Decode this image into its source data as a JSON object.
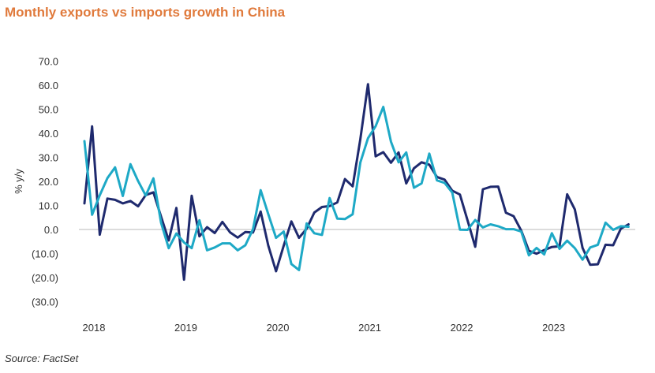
{
  "chart_data": {
    "type": "line",
    "title": "Monthly exports vs imports growth in China",
    "ylabel": "% y/y",
    "xlabel": "",
    "source": "Source: FactSet",
    "ylim": [
      -30,
      70
    ],
    "y_ticks": [
      70,
      60,
      50,
      40,
      30,
      20,
      10,
      0,
      -10,
      -20,
      -30
    ],
    "y_tick_labels": [
      "70.0",
      "60.0",
      "50.0",
      "40.0",
      "30.0",
      "20.0",
      "10.0",
      "0.0",
      "(10.0)",
      "(20.0)",
      "(30.0)"
    ],
    "x_tick_labels": [
      "2018",
      "2019",
      "2020",
      "2021",
      "2022",
      "2023"
    ],
    "x_start": "2018-01",
    "grid": false,
    "legend": "none",
    "series": [
      {
        "color": "#1f2a6e",
        "values": [
          11,
          43,
          -2,
          13,
          12.5,
          11,
          12,
          9.8,
          14.5,
          15.6,
          5.5,
          -4.4,
          9.1,
          -20.7,
          14.2,
          -2.7,
          1.1,
          -1.3,
          3.3,
          -1.0,
          -3.2,
          -0.9,
          -1.1,
          7.6,
          -6.6,
          -17.2,
          -6.6,
          3.5,
          -3.3,
          0.5,
          7.2,
          9.5,
          9.9,
          11.4,
          21.1,
          18.1,
          37.7,
          60.6,
          30.6,
          32.3,
          27.9,
          32.2,
          19.3,
          25.6,
          28.1,
          27.1,
          22,
          20.9,
          16.3,
          14.7,
          3.9,
          -7,
          16.9,
          17.9,
          18,
          7.1,
          5.7,
          -0.3,
          -8.7,
          -9.9,
          -8.4,
          -7.1,
          -6.8,
          14.8,
          8.5,
          -7.5,
          -14.5,
          -14.3,
          -6.2,
          -6.4,
          0.5,
          2.3
        ]
      },
      {
        "color": "#1ea9c6",
        "values": [
          36.9,
          6.3,
          14.4,
          21.5,
          26,
          14.1,
          27.3,
          20.3,
          14.3,
          21.4,
          3,
          -7.6,
          -1.5,
          -5.2,
          -7.6,
          4,
          -8.5,
          -7.3,
          -5.6,
          -5.6,
          -8.5,
          -6.4,
          0.3,
          16.5,
          6.5,
          -3.3,
          -0.7,
          -14.2,
          -16.7,
          2.7,
          -1.4,
          -2.1,
          13.2,
          4.7,
          4.5,
          6.5,
          28,
          38.1,
          43.1,
          51.1,
          36.7,
          28.1,
          32.2,
          17.5,
          19.3,
          31.7,
          20.6,
          19.5,
          15.5,
          0.1,
          0,
          4.1,
          1,
          2.3,
          1.5,
          0.3,
          0.3,
          -0.7,
          -10.6,
          -7.5,
          -10.2,
          -1.4,
          -7.9,
          -4.5,
          -7.6,
          -12.4,
          -7.3,
          -6.2,
          3,
          0,
          1.5,
          1.3
        ]
      }
    ]
  }
}
